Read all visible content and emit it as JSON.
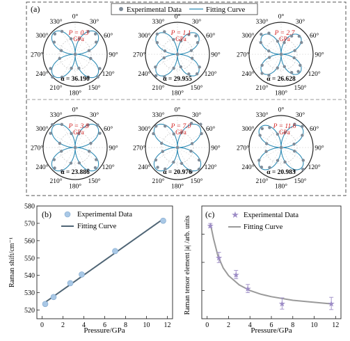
{
  "panel_a": {
    "label": "(a)",
    "legend": {
      "experimental": "Experimental Data",
      "fitting": "Fitting Curve"
    },
    "angle_labels": [
      "0°",
      "30°",
      "60°",
      "90°",
      "120°",
      "150°",
      "180°",
      "210°",
      "240°",
      "270°",
      "300°",
      "330°"
    ],
    "pressure_unit": "GPa",
    "colors": {
      "data": "#7f8c99",
      "curve": "#2f8cb5",
      "pressure": "#d22020",
      "frame": "#555555"
    },
    "polars": [
      {
        "pressure": "P = 0.3",
        "alpha": "α = 36.190",
        "lobe": 0.95
      },
      {
        "pressure": "P = 1.1",
        "alpha": "α = 29.955",
        "lobe": 0.88
      },
      {
        "pressure": "P = 2.7",
        "alpha": "α = 26.628",
        "lobe": 0.82
      },
      {
        "pressure": "P = 3.8",
        "alpha": "α = 23.886",
        "lobe": 0.95
      },
      {
        "pressure": "P = 7.0",
        "alpha": "α = 20.976",
        "lobe": 0.95
      },
      {
        "pressure": "P = 11.6",
        "alpha": "α = 20.983",
        "lobe": 0.9
      }
    ]
  },
  "chart_data": [
    {
      "type": "scatter",
      "label": "(b)",
      "xlabel": "Pressure/GPa",
      "ylabel": "Raman shift/cm⁻¹",
      "xlim": [
        -0.5,
        12.5
      ],
      "ylim": [
        515,
        580
      ],
      "xticks": [
        0,
        2,
        4,
        6,
        8,
        10,
        12
      ],
      "yticks": [
        520,
        530,
        540,
        550,
        560,
        570,
        580
      ],
      "series": [
        {
          "name": "Experimental Data",
          "x": [
            0.3,
            1.1,
            2.7,
            3.8,
            7.0,
            11.6
          ],
          "y": [
            523.5,
            527.5,
            535.5,
            540.5,
            554.0,
            571.5
          ]
        }
      ],
      "fit": {
        "name": "Fitting Curve",
        "x": [
          0.3,
          11.6
        ],
        "y": [
          524.5,
          572.5
        ]
      },
      "colors": {
        "marker": "#a9c8e6",
        "line": "#4f6575"
      }
    },
    {
      "type": "scatter",
      "label": "(c)",
      "xlabel": "Pressure/GPa",
      "ylabel": "Raman tensor element |a| /arb. units",
      "xlim": [
        -0.5,
        12.5
      ],
      "xticks": [
        0,
        2,
        4,
        6,
        8,
        10,
        12
      ],
      "series": [
        {
          "name": "Experimental Data",
          "x": [
            0.3,
            1.1,
            2.7,
            3.8,
            7.0,
            11.6
          ],
          "y": [
            36.19,
            29.955,
            26.628,
            23.886,
            20.976,
            20.983
          ],
          "err": [
            0.4,
            1.0,
            0.8,
            0.8,
            1.1,
            1.2
          ]
        }
      ],
      "fit": {
        "name": "Fitting Curve",
        "x": [
          0.3,
          0.6,
          1.0,
          1.5,
          2.0,
          3.0,
          4.0,
          5.0,
          6.0,
          8.0,
          10.0,
          11.6
        ],
        "y": [
          36.6,
          33.6,
          30.3,
          27.9,
          26.4,
          24.6,
          23.5,
          22.8,
          22.3,
          21.6,
          21.2,
          20.9
        ]
      },
      "colors": {
        "marker": "#9d8cc6",
        "line": "#9a9a9a",
        "err": "#9d8cc6"
      }
    }
  ]
}
